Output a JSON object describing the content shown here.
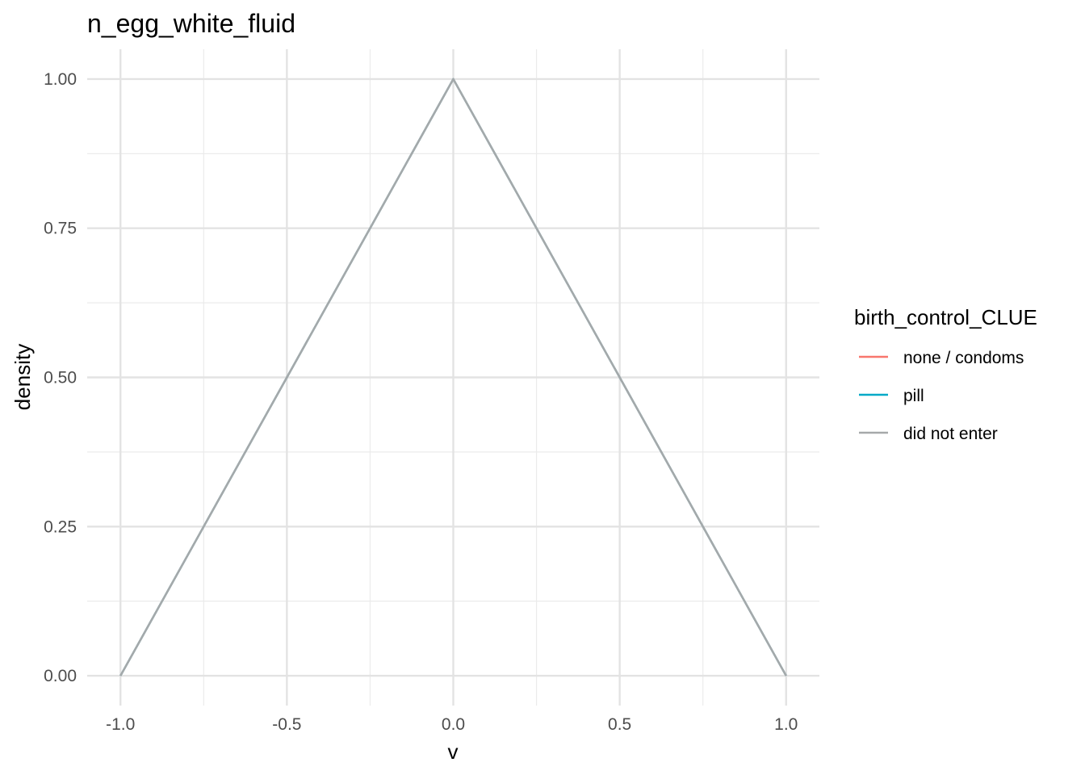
{
  "chart_data": {
    "type": "line",
    "title": "n_egg_white_fluid",
    "xlabel": "v",
    "ylabel": "density",
    "xlim": [
      -1.1,
      1.1
    ],
    "ylim": [
      -0.05,
      1.05
    ],
    "x_ticks": [
      -1.0,
      -0.5,
      0.0,
      0.5,
      1.0
    ],
    "x_tick_labels": [
      "-1.0",
      "-0.5",
      "0.0",
      "0.5",
      "1.0"
    ],
    "x_minor_ticks": [
      -0.75,
      -0.25,
      0.25,
      0.75
    ],
    "y_ticks": [
      0.0,
      0.25,
      0.5,
      0.75,
      1.0
    ],
    "y_tick_labels": [
      "0.00",
      "0.25",
      "0.50",
      "0.75",
      "1.00"
    ],
    "y_minor_ticks": [
      0.125,
      0.375,
      0.625,
      0.875
    ],
    "grid": true,
    "legend_title": "birth_control_CLUE",
    "legend_position": "right",
    "series": [
      {
        "name": "none / condoms",
        "color": "#F8766D",
        "x": [
          -1.0,
          0.0,
          1.0
        ],
        "y": [
          0.0,
          1.0,
          0.0
        ]
      },
      {
        "name": "pill",
        "color": "#00A9C7",
        "x": [
          -1.0,
          0.0,
          1.0
        ],
        "y": [
          0.0,
          1.0,
          0.0
        ]
      },
      {
        "name": "did not enter",
        "color": "#A6A9AA",
        "x": [
          -1.0,
          0.0,
          1.0
        ],
        "y": [
          0.0,
          1.0,
          0.0
        ]
      }
    ]
  }
}
